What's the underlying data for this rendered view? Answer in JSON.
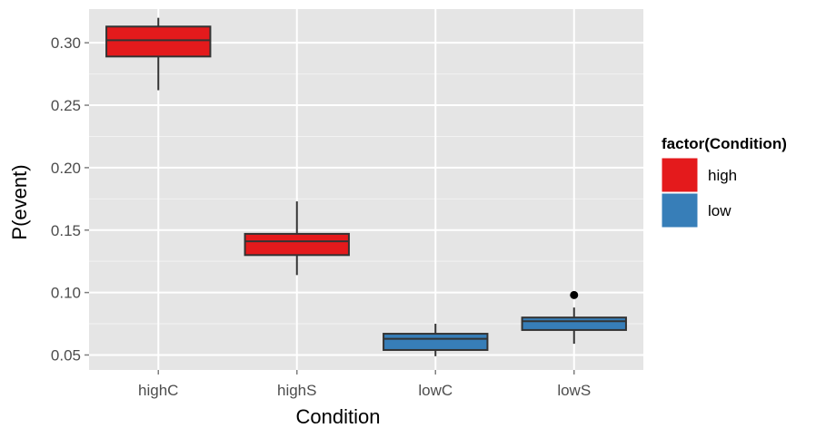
{
  "chart_data": {
    "type": "boxplot",
    "xlabel": "Condition",
    "ylabel": "P(event)",
    "categories": [
      "highC",
      "highS",
      "lowC",
      "lowS"
    ],
    "ylim": [
      0.038,
      0.327
    ],
    "yticks": [
      0.05,
      0.1,
      0.15,
      0.2,
      0.25,
      0.3
    ],
    "ytick_labels": [
      "0.05",
      "0.10",
      "0.15",
      "0.20",
      "0.25",
      "0.30"
    ],
    "grid": true,
    "legend": {
      "title": "factor(Condition)",
      "position": "right",
      "entries": [
        {
          "label": "high",
          "color": "#e41a1c"
        },
        {
          "label": "low",
          "color": "#377eb8"
        }
      ]
    },
    "boxes": [
      {
        "category": "highC",
        "group": "high",
        "min": 0.262,
        "q1": 0.289,
        "median": 0.302,
        "q3": 0.313,
        "max": 0.32,
        "outliers": []
      },
      {
        "category": "highS",
        "group": "high",
        "min": 0.114,
        "q1": 0.13,
        "median": 0.141,
        "q3": 0.147,
        "max": 0.173,
        "outliers": []
      },
      {
        "category": "lowC",
        "group": "low",
        "min": 0.049,
        "q1": 0.054,
        "median": 0.063,
        "q3": 0.067,
        "max": 0.075,
        "outliers": []
      },
      {
        "category": "lowS",
        "group": "low",
        "min": 0.059,
        "q1": 0.07,
        "median": 0.077,
        "q3": 0.08,
        "max": 0.088,
        "outliers": [
          0.098
        ]
      }
    ]
  },
  "colors": {
    "panel_bg": "#e5e5e5",
    "grid_major": "#ffffff",
    "grid_minor": "#f2f2f2",
    "box_outline": "#333333",
    "outlier": "#000000"
  }
}
